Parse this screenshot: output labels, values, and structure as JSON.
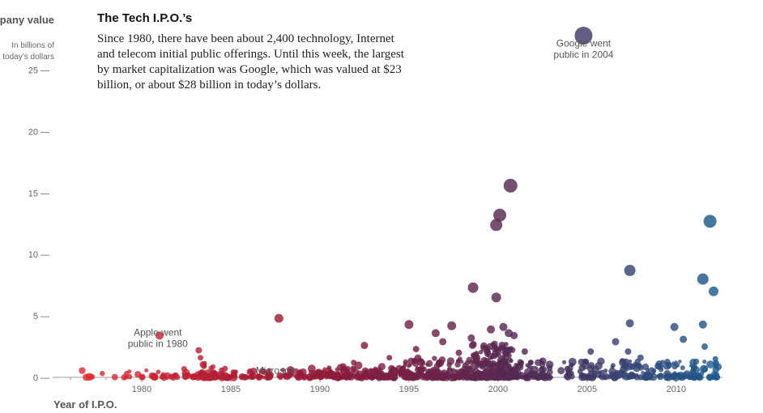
{
  "intro": {
    "title": "The Tech I.P.O.’s",
    "text": "Since 1980, there have been about 2,400 technology, Internet and telecom initial public offerings. Until this week, the largest by market capitalization was Google, which was valued at $23 billion, or about $28 billion in today’s dollars."
  },
  "chart_data": {
    "type": "scatter",
    "title": "The Tech I.P.O.’s",
    "ylabel": "Company value",
    "ylabel_sub": [
      "In billions of",
      "today’s dollars"
    ],
    "xlabel": "Year of I.P.O.",
    "xlim": [
      1975,
      2012.6
    ],
    "ylim": [
      0,
      28
    ],
    "x_ticks": [
      1980,
      1985,
      1990,
      1995,
      2000,
      2005,
      2010
    ],
    "y_ticks": [
      0,
      5,
      10,
      15,
      20,
      25
    ],
    "y_tick_suffix": " —",
    "grid": false,
    "color_scale": [
      "#e8262b",
      "#8b1a3c",
      "#4e2c56",
      "#1f5a8e"
    ],
    "annotations": [
      {
        "lines": [
          "Google went",
          "public in 2004"
        ],
        "x": 2004.8,
        "y": 26.9
      },
      {
        "lines": [
          "Apple went",
          "public in 1980"
        ],
        "x": 1980.9,
        "y": 3.4
      },
      {
        "lines": [
          "Microsoft"
        ],
        "x": 1986.4,
        "y": 0.3
      }
    ],
    "points": [
      {
        "x": 2004.8,
        "y": 27.8,
        "s": 20
      },
      {
        "x": 2000.7,
        "y": 15.6,
        "s": 15
      },
      {
        "x": 2000.1,
        "y": 13.2,
        "s": 14
      },
      {
        "x": 1999.9,
        "y": 12.4,
        "s": 13
      },
      {
        "x": 2011.9,
        "y": 12.7,
        "s": 14
      },
      {
        "x": 2011.5,
        "y": 8.0,
        "s": 12
      },
      {
        "x": 2007.4,
        "y": 8.7,
        "s": 12
      },
      {
        "x": 2012.1,
        "y": 7.0,
        "s": 10
      },
      {
        "x": 1998.6,
        "y": 7.3,
        "s": 11
      },
      {
        "x": 1999.9,
        "y": 6.5,
        "s": 10
      },
      {
        "x": 1987.7,
        "y": 4.8,
        "s": 9
      },
      {
        "x": 1981.0,
        "y": 3.4,
        "s": 8
      },
      {
        "x": 1995.0,
        "y": 4.3,
        "s": 9
      },
      {
        "x": 1997.4,
        "y": 4.2,
        "s": 9
      },
      {
        "x": 1996.5,
        "y": 3.6,
        "s": 8
      },
      {
        "x": 1992.5,
        "y": 2.6,
        "s": 7
      },
      {
        "x": 2007.4,
        "y": 4.4,
        "s": 8
      },
      {
        "x": 2009.9,
        "y": 4.1,
        "s": 8
      },
      {
        "x": 2011.5,
        "y": 4.3,
        "s": 8
      },
      {
        "x": 2010.4,
        "y": 3.1,
        "s": 7
      },
      {
        "x": 2006.6,
        "y": 2.9,
        "s": 7
      },
      {
        "x": 1983.2,
        "y": 2.2,
        "s": 6
      },
      {
        "x": 1983.3,
        "y": 1.6,
        "s": 5
      },
      {
        "x": 1983.5,
        "y": 0.9,
        "s": 5
      },
      {
        "x": 1998.5,
        "y": 3.2,
        "s": 7
      },
      {
        "x": 1999.6,
        "y": 3.9,
        "s": 8
      },
      {
        "x": 2000.3,
        "y": 4.1,
        "s": 8
      },
      {
        "x": 2000.6,
        "y": 3.6,
        "s": 8
      },
      {
        "x": 2000.9,
        "y": 3.4,
        "s": 7
      },
      {
        "x": 1996.9,
        "y": 2.9,
        "s": 7
      },
      {
        "x": 1995.4,
        "y": 2.3,
        "s": 6
      },
      {
        "x": 1997.8,
        "y": 2.0,
        "s": 6
      },
      {
        "x": 2001.5,
        "y": 2.1,
        "s": 6
      },
      {
        "x": 2005.2,
        "y": 2.1,
        "s": 6
      },
      {
        "x": 2007.3,
        "y": 2.1,
        "s": 6
      },
      {
        "x": 2008.0,
        "y": 1.6,
        "s": 6
      },
      {
        "x": 2011.6,
        "y": 2.5,
        "s": 6
      },
      {
        "x": 2012.2,
        "y": 1.5,
        "s": 5
      },
      {
        "x": 1993.9,
        "y": 1.6,
        "s": 5
      },
      {
        "x": 1991.9,
        "y": 1.2,
        "s": 5
      }
    ],
    "dense_clusters": [
      {
        "from": 1976.0,
        "to": 1979.8,
        "n": 12,
        "ymax": 0.8
      },
      {
        "from": 1980.0,
        "to": 1983.0,
        "n": 28,
        "ymax": 0.7
      },
      {
        "from": 1983.0,
        "to": 1984.5,
        "n": 40,
        "ymax": 1.2
      },
      {
        "from": 1984.5,
        "to": 1990.0,
        "n": 90,
        "ymax": 0.8
      },
      {
        "from": 1990.0,
        "to": 1994.5,
        "n": 120,
        "ymax": 1.0
      },
      {
        "from": 1994.5,
        "to": 1998.5,
        "n": 170,
        "ymax": 1.6
      },
      {
        "from": 1998.5,
        "to": 2000.9,
        "n": 240,
        "ymax": 2.8
      },
      {
        "from": 2000.9,
        "to": 2003.0,
        "n": 60,
        "ymax": 1.4
      },
      {
        "from": 2003.5,
        "to": 2008.5,
        "n": 110,
        "ymax": 1.4
      },
      {
        "from": 2008.5,
        "to": 2012.4,
        "n": 90,
        "ymax": 1.4
      }
    ]
  }
}
